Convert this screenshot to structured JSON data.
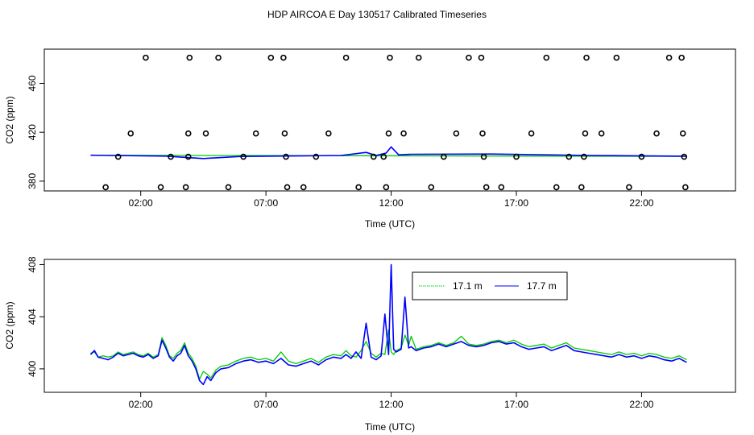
{
  "figure": {
    "title": "HDP AIRCOA E  Day 130517  Calibrated Timeseries"
  },
  "chart_data": [
    {
      "type": "scatter",
      "xlabel": "Time (UTC)",
      "ylabel": "CO2 (ppm)",
      "xlim": [
        -1.85,
        25.75
      ],
      "ylim": [
        372,
        488
      ],
      "x_tick_values": [
        2,
        7,
        12,
        17,
        22
      ],
      "x_ticks": [
        "02:00",
        "07:00",
        "12:00",
        "17:00",
        "22:00"
      ],
      "y_tick_values": [
        380,
        420,
        460
      ],
      "y_ticks": [
        "380",
        "420",
        "460"
      ],
      "grid": false,
      "points": [
        [
          0.6,
          375
        ],
        [
          1.1,
          400
        ],
        [
          1.6,
          419
        ],
        [
          2.2,
          481
        ],
        [
          2.8,
          375
        ],
        [
          3.2,
          400
        ],
        [
          3.8,
          375
        ],
        [
          3.9,
          400
        ],
        [
          3.9,
          419
        ],
        [
          3.95,
          481
        ],
        [
          4.6,
          419
        ],
        [
          5.1,
          481
        ],
        [
          5.5,
          375
        ],
        [
          6.1,
          400
        ],
        [
          6.6,
          419
        ],
        [
          7.2,
          481
        ],
        [
          7.7,
          481
        ],
        [
          7.75,
          419
        ],
        [
          7.8,
          400
        ],
        [
          7.85,
          375
        ],
        [
          8.5,
          375
        ],
        [
          9.0,
          400
        ],
        [
          9.5,
          419
        ],
        [
          10.2,
          481
        ],
        [
          10.7,
          375
        ],
        [
          11.3,
          400
        ],
        [
          11.7,
          400
        ],
        [
          11.8,
          375
        ],
        [
          11.9,
          419
        ],
        [
          11.95,
          481
        ],
        [
          12.5,
          419
        ],
        [
          13.1,
          481
        ],
        [
          13.6,
          375
        ],
        [
          14.1,
          400
        ],
        [
          14.6,
          419
        ],
        [
          15.1,
          481
        ],
        [
          15.6,
          481
        ],
        [
          15.65,
          419
        ],
        [
          15.7,
          400
        ],
        [
          15.8,
          375
        ],
        [
          16.4,
          375
        ],
        [
          17.0,
          400
        ],
        [
          17.6,
          419
        ],
        [
          18.2,
          481
        ],
        [
          18.6,
          375
        ],
        [
          19.1,
          400
        ],
        [
          19.6,
          375
        ],
        [
          19.7,
          400
        ],
        [
          19.75,
          419
        ],
        [
          19.8,
          481
        ],
        [
          20.4,
          419
        ],
        [
          21.0,
          481
        ],
        [
          21.5,
          375
        ],
        [
          22.0,
          400
        ],
        [
          22.6,
          419
        ],
        [
          23.1,
          481
        ],
        [
          23.6,
          481
        ],
        [
          23.65,
          419
        ],
        [
          23.7,
          400
        ],
        [
          23.75,
          375
        ]
      ],
      "series": [
        {
          "color": "#00cc00",
          "x": [
            0,
            23.8
          ],
          "y": [
            401.2,
            400.3
          ]
        },
        {
          "color": "#0000ff",
          "x": [
            0,
            3.0,
            4.5,
            6.0,
            10.0,
            11.0,
            11.4,
            11.8,
            12.0,
            12.3,
            12.8,
            16.0,
            20.0,
            23.8
          ],
          "y": [
            401.2,
            400.5,
            398.5,
            400.2,
            401.0,
            403.5,
            401.0,
            403.0,
            408.0,
            401.5,
            402.0,
            402.2,
            401.0,
            400.4
          ]
        }
      ]
    },
    {
      "type": "line",
      "xlabel": "Time (UTC)",
      "ylabel": "CO2 (ppm)",
      "xlim": [
        -1.85,
        25.75
      ],
      "ylim": [
        398.2,
        408.4
      ],
      "x_tick_values": [
        2,
        7,
        12,
        17,
        22
      ],
      "x_ticks": [
        "02:00",
        "07:00",
        "12:00",
        "17:00",
        "22:00"
      ],
      "y_tick_values": [
        400,
        404,
        408
      ],
      "y_ticks": [
        "400",
        "404",
        "408"
      ],
      "grid": false,
      "legend": {
        "position": "top-right",
        "entries": [
          "17.1 m",
          "17.7 m"
        ]
      },
      "series": [
        {
          "name": "17.1 m",
          "color": "#00cc00",
          "x": [
            0,
            0.15,
            0.3,
            0.5,
            0.7,
            0.9,
            1.1,
            1.3,
            1.5,
            1.7,
            1.9,
            2.1,
            2.3,
            2.5,
            2.7,
            2.85,
            3.0,
            3.15,
            3.3,
            3.45,
            3.6,
            3.75,
            3.9,
            4.05,
            4.2,
            4.35,
            4.5,
            4.65,
            4.8,
            5.0,
            5.2,
            5.5,
            5.8,
            6.1,
            6.4,
            6.7,
            7.0,
            7.3,
            7.6,
            7.9,
            8.2,
            8.5,
            8.8,
            9.1,
            9.4,
            9.7,
            10.0,
            10.2,
            10.4,
            10.6,
            10.8,
            11.0,
            11.2,
            11.4,
            11.6,
            11.75,
            11.9,
            12.0,
            12.1,
            12.2,
            12.4,
            12.55,
            12.7,
            12.8,
            13.0,
            13.3,
            13.6,
            13.9,
            14.2,
            14.5,
            14.8,
            15.1,
            15.4,
            15.7,
            16.0,
            16.3,
            16.6,
            16.9,
            17.2,
            17.5,
            17.8,
            18.1,
            18.4,
            18.7,
            19.0,
            19.3,
            19.6,
            19.9,
            20.2,
            20.5,
            20.8,
            21.1,
            21.4,
            21.7,
            22.0,
            22.3,
            22.6,
            22.9,
            23.2,
            23.5,
            23.8
          ],
          "y": [
            401.2,
            401.3,
            400.9,
            401.0,
            400.9,
            401.0,
            401.3,
            401.1,
            401.2,
            401.3,
            401.1,
            401.0,
            401.2,
            400.9,
            401.1,
            402.4,
            401.8,
            401.0,
            400.8,
            401.2,
            401.4,
            402.0,
            401.2,
            400.8,
            400.2,
            399.2,
            399.8,
            399.6,
            399.3,
            399.9,
            400.2,
            400.3,
            400.6,
            400.8,
            400.9,
            400.7,
            400.8,
            400.6,
            401.3,
            400.6,
            400.4,
            400.6,
            400.8,
            400.5,
            400.9,
            401.1,
            401.0,
            401.4,
            401.0,
            400.9,
            401.4,
            402.1,
            401.2,
            400.9,
            401.2,
            401.1,
            403.0,
            401.3,
            401.1,
            401.4,
            401.6,
            402.6,
            401.8,
            402.5,
            401.5,
            401.7,
            401.8,
            402.0,
            401.8,
            402.0,
            402.5,
            401.9,
            401.8,
            401.9,
            402.1,
            402.2,
            402.0,
            402.2,
            401.9,
            401.7,
            401.8,
            401.9,
            401.6,
            401.8,
            402.0,
            401.6,
            401.5,
            401.4,
            401.3,
            401.2,
            401.1,
            401.3,
            401.1,
            401.2,
            401.0,
            401.2,
            401.1,
            400.9,
            400.8,
            401.0,
            400.7
          ]
        },
        {
          "name": "17.7 m",
          "color": "#0000ff",
          "x": [
            0,
            0.15,
            0.3,
            0.5,
            0.7,
            0.9,
            1.1,
            1.3,
            1.5,
            1.7,
            1.9,
            2.1,
            2.3,
            2.5,
            2.7,
            2.85,
            3.0,
            3.15,
            3.3,
            3.45,
            3.6,
            3.75,
            3.9,
            4.05,
            4.2,
            4.35,
            4.5,
            4.65,
            4.8,
            5.0,
            5.2,
            5.5,
            5.8,
            6.1,
            6.4,
            6.7,
            7.0,
            7.3,
            7.6,
            7.9,
            8.2,
            8.5,
            8.8,
            9.1,
            9.4,
            9.7,
            10.0,
            10.2,
            10.4,
            10.6,
            10.8,
            11.0,
            11.2,
            11.4,
            11.6,
            11.75,
            11.9,
            12.0,
            12.1,
            12.2,
            12.4,
            12.55,
            12.7,
            12.8,
            13.0,
            13.3,
            13.6,
            13.9,
            14.2,
            14.5,
            14.8,
            15.1,
            15.4,
            15.7,
            16.0,
            16.3,
            16.6,
            16.9,
            17.2,
            17.5,
            17.8,
            18.1,
            18.4,
            18.7,
            19.0,
            19.3,
            19.6,
            19.9,
            20.2,
            20.5,
            20.8,
            21.1,
            21.4,
            21.7,
            22.0,
            22.3,
            22.6,
            22.9,
            23.2,
            23.5,
            23.8
          ],
          "y": [
            401.1,
            401.4,
            400.9,
            400.8,
            400.7,
            400.9,
            401.2,
            401.0,
            401.1,
            401.2,
            401.0,
            400.9,
            401.1,
            400.8,
            401.0,
            402.2,
            401.6,
            400.9,
            400.6,
            401.0,
            401.2,
            401.8,
            401.0,
            400.6,
            400.0,
            399.1,
            398.8,
            399.4,
            399.1,
            399.7,
            400.0,
            400.1,
            400.4,
            400.6,
            400.7,
            400.5,
            400.6,
            400.4,
            400.8,
            400.3,
            400.2,
            400.4,
            400.6,
            400.3,
            400.7,
            400.9,
            400.8,
            401.1,
            400.8,
            401.3,
            400.8,
            403.5,
            400.9,
            400.7,
            401.0,
            404.2,
            401.1,
            408.0,
            401.5,
            401.3,
            401.5,
            405.5,
            401.6,
            401.7,
            401.4,
            401.6,
            401.7,
            401.9,
            401.7,
            401.9,
            402.1,
            401.8,
            401.7,
            401.8,
            402.0,
            402.1,
            401.9,
            402.0,
            401.7,
            401.5,
            401.6,
            401.7,
            401.4,
            401.6,
            401.8,
            401.4,
            401.3,
            401.2,
            401.1,
            401.0,
            400.9,
            401.1,
            400.9,
            401.0,
            400.8,
            401.0,
            400.9,
            400.7,
            400.6,
            400.8,
            400.5
          ]
        }
      ]
    }
  ]
}
